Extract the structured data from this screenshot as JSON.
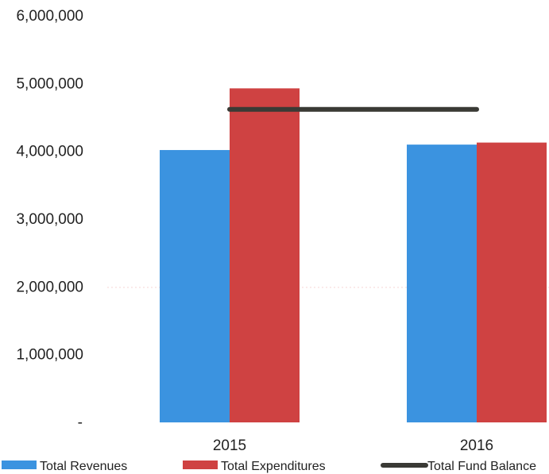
{
  "chart_data": {
    "type": "bar",
    "categories": [
      "2015",
      "2016"
    ],
    "series": [
      {
        "name": "Total Revenues",
        "kind": "bar",
        "color": "#3b93e0",
        "values": [
          4020000,
          4100000
        ]
      },
      {
        "name": "Total Expenditures",
        "kind": "bar",
        "color": "#cf4242",
        "values": [
          4930000,
          4130000
        ]
      },
      {
        "name": "Total Fund Balance",
        "kind": "line",
        "color": "#3a3a35",
        "values": [
          4620000,
          4620000
        ]
      }
    ],
    "y_tick_labels": [
      "-",
      "1,000,000",
      "2,000,000",
      "3,000,000",
      "4,000,000",
      "5,000,000",
      "6,000,000"
    ],
    "ylim": [
      0,
      6000000
    ],
    "title": "",
    "xlabel": "",
    "ylabel": "",
    "grid": false,
    "legend_position": "bottom"
  }
}
